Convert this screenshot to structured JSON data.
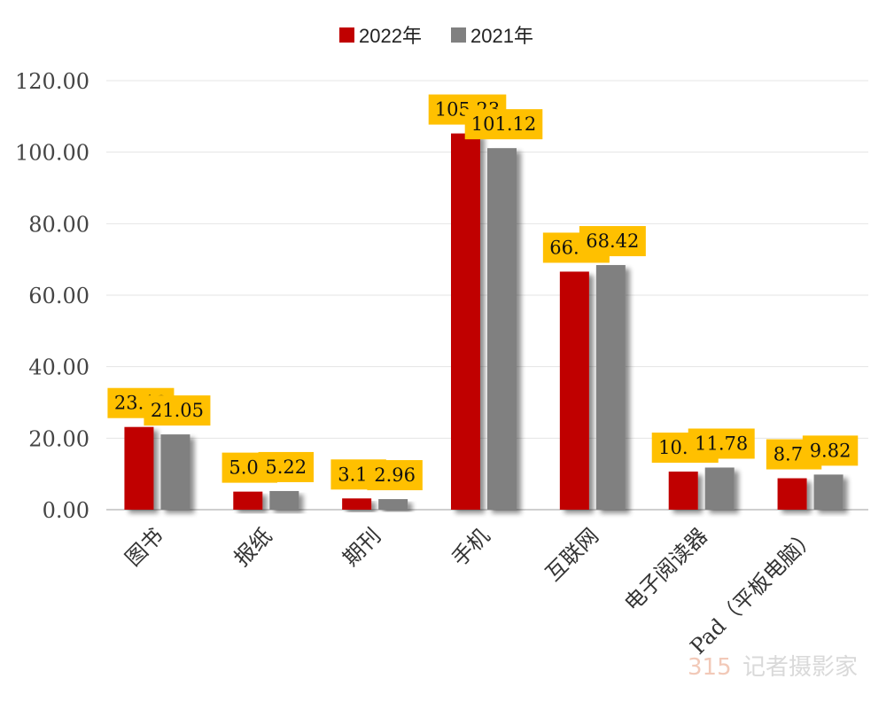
{
  "chart_data": {
    "type": "bar",
    "categories": [
      "图书",
      "报纸",
      "期刊",
      "手机",
      "互联网",
      "电子阅读器",
      "Pad（平板电脑）"
    ],
    "series": [
      {
        "name": "2022年",
        "color": "#c00000",
        "values": [
          23.13,
          5.05,
          3.15,
          105.23,
          66.58,
          10.65,
          8.79
        ]
      },
      {
        "name": "2021年",
        "color": "#808080",
        "values": [
          21.05,
          5.22,
          2.96,
          101.12,
          68.42,
          11.78,
          9.82
        ]
      }
    ],
    "yticks": [
      "0.00",
      "20.00",
      "40.00",
      "60.00",
      "80.00",
      "100.00",
      "120.00"
    ],
    "ylim": [
      0,
      120
    ],
    "grid": true,
    "legend_position": "top-center",
    "data_label_background": "#ffc000"
  },
  "watermark": {
    "logo": "315",
    "text": "记者摄影家"
  }
}
